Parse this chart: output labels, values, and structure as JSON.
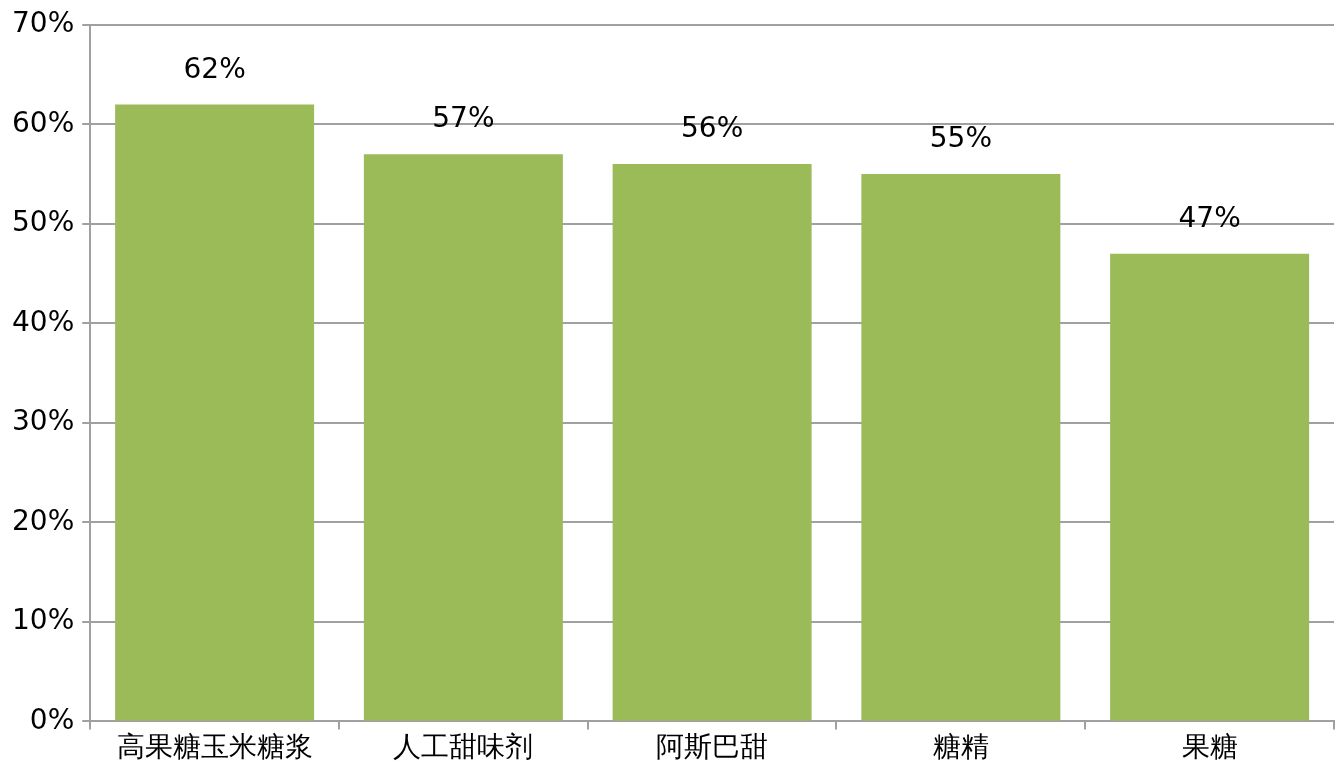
{
  "chart_data": {
    "type": "bar",
    "categories": [
      "高果糖玉米糖浆",
      "人工甜味剂",
      "阿斯巴甜",
      "糖精",
      "果糖"
    ],
    "values": [
      62,
      57,
      56,
      55,
      47
    ],
    "value_labels": [
      "62%",
      "57%",
      "56%",
      "55%",
      "47%"
    ],
    "color": "#9bbb59",
    "ylim": [
      0,
      70
    ],
    "yticks": [
      {
        "value": 0,
        "label": "0%"
      },
      {
        "value": 10,
        "label": "10%"
      },
      {
        "value": 20,
        "label": "20%"
      },
      {
        "value": 30,
        "label": "30%"
      },
      {
        "value": 40,
        "label": "40%"
      },
      {
        "value": 50,
        "label": "50%"
      },
      {
        "value": 60,
        "label": "60%"
      },
      {
        "value": 70,
        "label": "70%"
      }
    ],
    "grid": "y",
    "legend": false
  }
}
